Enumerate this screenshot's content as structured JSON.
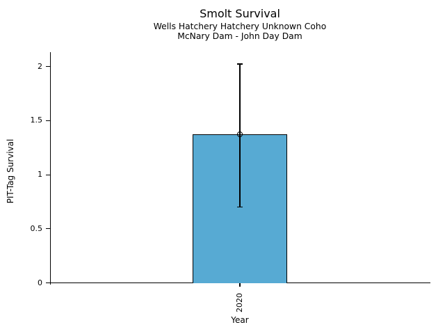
{
  "chart_data": {
    "type": "bar",
    "title": "Smolt Survival",
    "subtitle_line1": "Wells Hatchery Hatchery Unknown Coho",
    "subtitle_line2": "McNary Dam - John Day Dam",
    "xlabel": "Year",
    "ylabel": "PIT-Tag Survival",
    "categories": [
      "2020"
    ],
    "values": [
      1.37
    ],
    "error_low": [
      0.7
    ],
    "error_high": [
      2.02
    ],
    "yticks": [
      0,
      0.5,
      1,
      1.5,
      2
    ],
    "ylim": [
      0,
      2.13
    ],
    "grid": false,
    "legend": false,
    "marker": "open-circle",
    "bar_color": "#57AAD3",
    "edge_color": "#000000",
    "text_color": "#000000",
    "background_color": "#ffffff"
  }
}
